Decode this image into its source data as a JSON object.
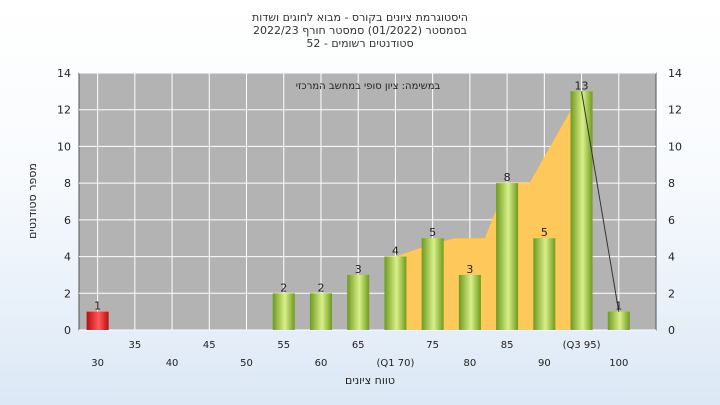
{
  "colors": {
    "plot_bg": "#b3b3b3",
    "grid": "#ffffff",
    "area": "#ffc85a",
    "bar_green_dark": "#6e9a1e",
    "bar_green_light": "#d9f08a",
    "bar_red_dark": "#b80f0f",
    "bar_red_light": "#ff5a5a"
  },
  "chart_data": {
    "type": "bar",
    "title_lines": [
      "היסטוגרמת ציונים בקורס - מבוא לחוגים ושדות",
      "בסמסטר  (01/2022)  סמסטר חורף 2022/23",
      "סטודנטים רשומים - 52"
    ],
    "annotation": "במשימה: ציון סופי במחשב המרכזי",
    "ylabel": "מספר סטודנטים",
    "xlabel": "טווח ציונים",
    "ylim": [
      0,
      14
    ],
    "y_ticks": [
      "0",
      "2",
      "4",
      "6",
      "8",
      "10",
      "12",
      "14"
    ],
    "x_ticks": [
      {
        "value": 30,
        "label": "30"
      },
      {
        "value": 35,
        "label": "35"
      },
      {
        "value": 40,
        "label": "40"
      },
      {
        "value": 45,
        "label": "45"
      },
      {
        "value": 50,
        "label": "50"
      },
      {
        "value": 55,
        "label": "55"
      },
      {
        "value": 60,
        "label": "60"
      },
      {
        "value": 65,
        "label": "65"
      },
      {
        "value": 70,
        "label": "(Q1 70)"
      },
      {
        "value": 75,
        "label": "75"
      },
      {
        "value": 80,
        "label": "80"
      },
      {
        "value": 85,
        "label": "85"
      },
      {
        "value": 90,
        "label": "90"
      },
      {
        "value": 95,
        "label": "(Q3 95)"
      },
      {
        "value": 100,
        "label": "100"
      }
    ],
    "bars": [
      {
        "x": 30,
        "value": 1,
        "label": "1",
        "highlight": true
      },
      {
        "x": 55,
        "value": 2,
        "label": "2"
      },
      {
        "x": 60,
        "value": 2,
        "label": "2"
      },
      {
        "x": 65,
        "value": 3,
        "label": "3"
      },
      {
        "x": 70,
        "value": 4,
        "label": "4"
      },
      {
        "x": 75,
        "value": 5,
        "label": "5"
      },
      {
        "x": 80,
        "value": 3,
        "label": "3"
      },
      {
        "x": 85,
        "value": 8,
        "label": "8"
      },
      {
        "x": 90,
        "value": 5,
        "label": "5"
      },
      {
        "x": 95,
        "value": 13,
        "label": "13"
      },
      {
        "x": 100,
        "value": 1,
        "label": "1"
      }
    ],
    "interquartile_area": [
      {
        "x": 70,
        "y": 4
      },
      {
        "x": 75,
        "y": 4.7
      },
      {
        "x": 78,
        "y": 5
      },
      {
        "x": 82,
        "y": 5
      },
      {
        "x": 85,
        "y": 8
      },
      {
        "x": 88,
        "y": 8
      },
      {
        "x": 95,
        "y": 13
      }
    ],
    "trend_line": [
      {
        "x": 95,
        "y": 13
      },
      {
        "x": 100,
        "y": 1
      }
    ],
    "grid": true
  }
}
